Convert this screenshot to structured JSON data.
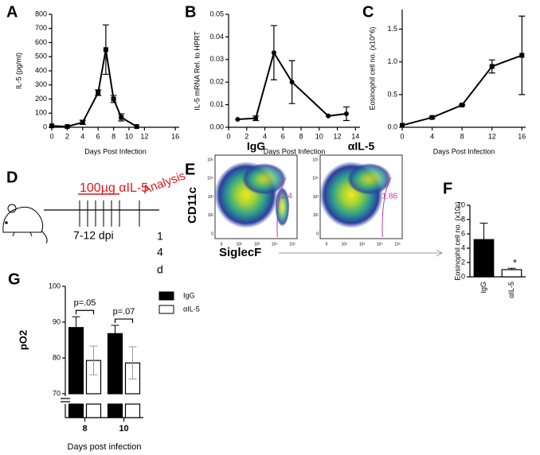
{
  "panel_labels": [
    "A",
    "B",
    "C",
    "D",
    "E",
    "F",
    "G"
  ],
  "chart_data": [
    {
      "type": "line",
      "y_label": "IL-5 (pg/ml)",
      "x_label": "Days Post Infection",
      "xlim": [
        0,
        16.5
      ],
      "xticks": [
        0,
        2,
        4,
        6,
        8,
        10,
        12,
        16
      ],
      "ylim": [
        0,
        800
      ],
      "yticks": [
        0,
        100,
        200,
        300,
        400,
        500,
        600,
        700,
        800
      ],
      "marker": "square",
      "series": [
        {
          "color": "#000000",
          "x": [
            0,
            2,
            4,
            6,
            7,
            8,
            9,
            11
          ],
          "values": [
            10,
            5,
            35,
            245,
            550,
            200,
            70,
            5
          ],
          "errors": [
            null,
            null,
            15,
            20,
            175,
            25,
            25,
            null
          ]
        }
      ]
    },
    {
      "type": "line",
      "y_label": "IL-5 mRNA Rel. to HPRT",
      "x_label": "Days Post Infection",
      "xlim": [
        0,
        14.5
      ],
      "xticks": [
        0,
        2,
        4,
        6,
        8,
        10,
        12,
        14
      ],
      "ylim": [
        0,
        0.05
      ],
      "yticks": [
        {
          "value": 0,
          "label": "0.00"
        },
        {
          "value": 0.01,
          "label": "0.01"
        },
        {
          "value": 0.02,
          "label": "0.02"
        },
        {
          "value": 0.03,
          "label": "0.03"
        },
        {
          "value": 0.04,
          "label": "0.04"
        },
        {
          "value": 0.05,
          "label": "0.05"
        }
      ],
      "marker": "circle",
      "series": [
        {
          "color": "#000000",
          "x": [
            1,
            3,
            5,
            7,
            11,
            13
          ],
          "values": [
            0.0035,
            0.004,
            0.033,
            0.02,
            0.005,
            0.006
          ],
          "errors": [
            null,
            0.001,
            0.012,
            0.0095,
            null,
            0.003
          ]
        }
      ]
    },
    {
      "type": "line",
      "y_label": "Eosinophil cell no. (x10^6)",
      "x_label": "Days Post Infection",
      "xlim": [
        0,
        16.5
      ],
      "xticks": [
        0,
        4,
        8,
        12,
        16
      ],
      "ylim": [
        0,
        1.8
      ],
      "yticks": [
        {
          "value": 0,
          "label": "0.0"
        },
        {
          "value": 0.5,
          "label": "0.5"
        },
        {
          "value": 1,
          "label": "1.0"
        },
        {
          "value": 1.5,
          "label": "1.5"
        }
      ],
      "marker": "square",
      "series": [
        {
          "color": "#000000",
          "x": [
            0,
            4,
            8,
            12,
            16
          ],
          "values": [
            0.03,
            0.15,
            0.34,
            0.93,
            1.1
          ],
          "errors": [
            null,
            0.01,
            0.01,
            0.1,
            0.6
          ]
        }
      ]
    },
    {
      "type": "bar",
      "y_label": "Eosinophil cell no. (x10⁵)",
      "categories": [
        "IgG",
        "αIL-5"
      ],
      "values": [
        5.2,
        1.0
      ],
      "errors": [
        2.3,
        0.2
      ],
      "colors": [
        "#000000",
        "#ffffff"
      ],
      "annotations": [
        null,
        "*"
      ],
      "ylim": [
        0,
        10
      ],
      "yticks": [
        0,
        2,
        4,
        6,
        8,
        10
      ]
    },
    {
      "type": "grouped_bar",
      "y_label": "pO2",
      "x_label": "Days post infection",
      "categories": [
        "8",
        "10"
      ],
      "ylim": [
        70,
        100
      ],
      "yticks": [
        70,
        80,
        90,
        100
      ],
      "annotations": [
        "p=.05",
        "p=.07"
      ],
      "series": [
        {
          "name": "IgG",
          "color": "#000000",
          "values": [
            88.5,
            86.8
          ],
          "errors": [
            3,
            2.3
          ]
        },
        {
          "name": "αIL-5",
          "color": "#ffffff",
          "values": [
            79.3,
            78.6
          ],
          "errors": [
            4,
            4.5
          ]
        }
      ]
    }
  ],
  "protocol": {
    "treatment": "100µg αIL-5",
    "window": "7-12 dpi",
    "endpoint": "Analysis",
    "day": [
      "1",
      "4",
      "d"
    ]
  },
  "flow": {
    "y_label": "CD11c",
    "x_label": "SiglecF",
    "ticks": [
      "0",
      "10²",
      "10³",
      "10⁴",
      "10⁵"
    ],
    "plots": [
      {
        "title": "IgG",
        "gate_value": "12.4"
      },
      {
        "title": "αIL-5",
        "gate_value": "1.86"
      }
    ]
  }
}
